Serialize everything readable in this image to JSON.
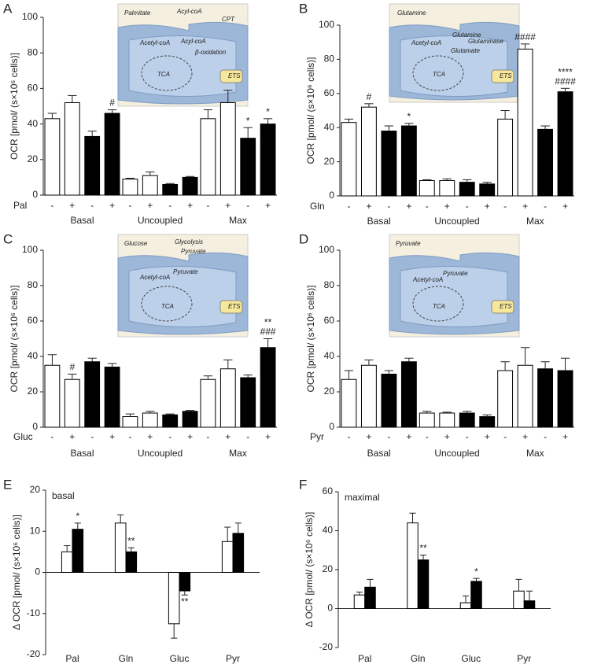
{
  "chart_data": [
    {
      "type": "bar",
      "panel": "A",
      "ylabel": "OCR [pmol/ (s×10⁶ cells)]",
      "treatment": "Pal",
      "categories": [
        "Basal",
        "Uncoupled",
        "Max"
      ],
      "bar_labels": [
        "-",
        "+",
        "-",
        "+"
      ],
      "ylim": [
        0,
        100
      ],
      "yticks": [
        0,
        20,
        40,
        60,
        80,
        100
      ],
      "inset": [
        "Palmitate",
        "Acyl-coA",
        "CPT",
        "Acetyl-coA",
        "Acyl-coA",
        "β-oxidation",
        "TCA",
        "ETS"
      ],
      "series": [
        {
          "color": "#ffffff",
          "values": [
            43,
            9,
            43
          ],
          "errors": [
            3,
            0.5,
            5
          ],
          "marks": [
            null,
            null,
            null
          ]
        },
        {
          "color": "#ffffff",
          "values": [
            52,
            11,
            52
          ],
          "errors": [
            4,
            2,
            7
          ],
          "marks": [
            null,
            null,
            null
          ]
        },
        {
          "color": "#000000",
          "values": [
            33,
            6,
            32
          ],
          "errors": [
            3,
            0.5,
            6
          ],
          "marks": [
            null,
            null,
            [
              "*"
            ]
          ]
        },
        {
          "color": "#000000",
          "values": [
            46,
            10,
            40
          ],
          "errors": [
            2,
            0.5,
            3
          ],
          "marks": [
            [
              "#"
            ],
            null,
            [
              "*"
            ]
          ]
        }
      ]
    },
    {
      "type": "bar",
      "panel": "B",
      "ylabel": "OCR [pmol/ (s×10⁶ cells)]",
      "treatment": "Gln",
      "categories": [
        "Basal",
        "Uncoupled",
        "Max"
      ],
      "bar_labels": [
        "-",
        "+",
        "-",
        "+"
      ],
      "ylim": [
        0,
        100
      ],
      "yticks": [
        0,
        20,
        40,
        60,
        80,
        100
      ],
      "inset": [
        "Glutamine",
        "Glutamine",
        "Glutaminase",
        "Acetyl-coA",
        "Glutamate",
        "TCA",
        "ETS"
      ],
      "series": [
        {
          "color": "#ffffff",
          "values": [
            43,
            9,
            45
          ],
          "errors": [
            2,
            0.5,
            5
          ],
          "marks": [
            null,
            null,
            null
          ]
        },
        {
          "color": "#ffffff",
          "values": [
            52,
            9,
            86
          ],
          "errors": [
            2,
            1,
            3
          ],
          "marks": [
            [
              "#"
            ],
            null,
            [
              "####"
            ]
          ]
        },
        {
          "color": "#000000",
          "values": [
            38,
            8,
            39
          ],
          "errors": [
            3,
            1.5,
            2
          ],
          "marks": [
            null,
            null,
            null
          ]
        },
        {
          "color": "#000000",
          "values": [
            41,
            7,
            61
          ],
          "errors": [
            1.5,
            1,
            2
          ],
          "marks": [
            [
              "*"
            ],
            null,
            [
              "****",
              "####"
            ]
          ]
        }
      ]
    },
    {
      "type": "bar",
      "panel": "C",
      "ylabel": "OCR [pmol/ (s×10⁶ cells)]",
      "treatment": "Gluc",
      "categories": [
        "Basal",
        "Uncoupled",
        "Max"
      ],
      "bar_labels": [
        "-",
        "+",
        "-",
        "+"
      ],
      "ylim": [
        0,
        100
      ],
      "yticks": [
        0,
        20,
        40,
        60,
        80,
        100
      ],
      "inset": [
        "Glucose",
        "Glycolysis",
        "Pyruvate",
        "Pyruvate",
        "Acetyl-coA",
        "TCA",
        "ETS"
      ],
      "series": [
        {
          "color": "#ffffff",
          "values": [
            35,
            6,
            27
          ],
          "errors": [
            6,
            1.5,
            2
          ],
          "marks": [
            null,
            null,
            null
          ]
        },
        {
          "color": "#ffffff",
          "values": [
            27,
            8,
            33
          ],
          "errors": [
            3,
            1,
            5
          ],
          "marks": [
            [
              "#"
            ],
            null,
            null
          ]
        },
        {
          "color": "#000000",
          "values": [
            37,
            7,
            28
          ],
          "errors": [
            2,
            0.5,
            1.5
          ],
          "marks": [
            null,
            null,
            null
          ]
        },
        {
          "color": "#000000",
          "values": [
            34,
            9,
            45
          ],
          "errors": [
            2,
            0.5,
            5
          ],
          "marks": [
            null,
            null,
            [
              "**",
              "###"
            ]
          ]
        }
      ]
    },
    {
      "type": "bar",
      "panel": "D",
      "ylabel": "OCR [pmol/ (s×10⁶ cells)]",
      "treatment": "Pyr",
      "categories": [
        "Basal",
        "Uncoupled",
        "Max"
      ],
      "bar_labels": [
        "-",
        "+",
        "-",
        "+"
      ],
      "ylim": [
        0,
        100
      ],
      "yticks": [
        0,
        20,
        40,
        60,
        80,
        100
      ],
      "inset": [
        "Pyruvate",
        "Pyruvate",
        "Acetyl-coA",
        "TCA",
        "ETS"
      ],
      "series": [
        {
          "color": "#ffffff",
          "values": [
            27,
            8,
            32
          ],
          "errors": [
            5,
            1,
            5
          ],
          "marks": [
            null,
            null,
            null
          ]
        },
        {
          "color": "#ffffff",
          "values": [
            35,
            8,
            35
          ],
          "errors": [
            3,
            0.5,
            10
          ],
          "marks": [
            null,
            null,
            null
          ]
        },
        {
          "color": "#000000",
          "values": [
            30,
            8,
            33
          ],
          "errors": [
            2,
            1,
            4
          ],
          "marks": [
            null,
            null,
            null
          ]
        },
        {
          "color": "#000000",
          "values": [
            37,
            6,
            32
          ],
          "errors": [
            2,
            1,
            7
          ],
          "marks": [
            null,
            null,
            null
          ]
        }
      ]
    },
    {
      "type": "delta",
      "panel": "E",
      "ylabel": "Δ OCR [pmol/ (s×10⁶ cells)]",
      "note": "basal",
      "categories": [
        "Pal",
        "Gln",
        "Gluc",
        "Pyr"
      ],
      "ylim": [
        -20,
        20
      ],
      "yticks": [
        -20,
        -10,
        0,
        10,
        20
      ],
      "series": [
        {
          "color": "#ffffff",
          "values": [
            5,
            12,
            -12.5,
            7.5
          ],
          "errors": [
            1.5,
            2,
            3.5,
            3.5
          ],
          "marks": [
            null,
            null,
            null,
            null
          ]
        },
        {
          "color": "#000000",
          "values": [
            10.5,
            5,
            -4.5,
            9.5
          ],
          "errors": [
            1.5,
            1,
            1,
            2.5
          ],
          "marks": [
            [
              "*"
            ],
            [
              "**"
            ],
            [
              "**"
            ],
            null
          ]
        }
      ]
    },
    {
      "type": "delta",
      "panel": "F",
      "ylabel": "Δ OCR [pmol/ (s×10⁶ cells)]",
      "note": "maximal",
      "categories": [
        "Pal",
        "Gln",
        "Gluc",
        "Pyr"
      ],
      "ylim": [
        -20,
        60
      ],
      "yticks": [
        -20,
        0,
        20,
        40,
        60
      ],
      "series": [
        {
          "color": "#ffffff",
          "values": [
            7,
            44,
            3,
            9
          ],
          "errors": [
            1.5,
            5,
            3.5,
            6
          ],
          "marks": [
            null,
            null,
            null,
            null
          ]
        },
        {
          "color": "#000000",
          "values": [
            11,
            25,
            14,
            4
          ],
          "errors": [
            4,
            2.5,
            1.5,
            5
          ],
          "marks": [
            null,
            [
              "**"
            ],
            [
              "*"
            ],
            null
          ]
        }
      ]
    }
  ]
}
